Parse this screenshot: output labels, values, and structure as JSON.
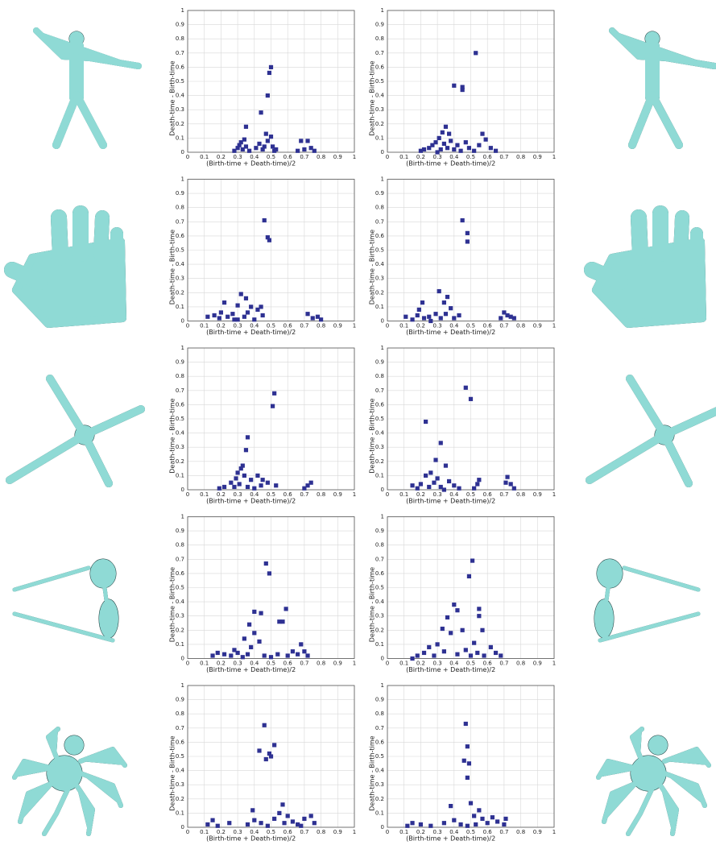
{
  "chart_data": [
    {
      "type": "scatter",
      "xlabel": "(Birth-time + Death-time)/2",
      "ylabel": "Death-time - Birth-time",
      "color": "#2e3192",
      "grid": true,
      "xlim": [
        0,
        1
      ],
      "ylim": [
        0,
        1
      ],
      "xticks": [
        0,
        0.1,
        0.2,
        0.3,
        0.4,
        0.5,
        0.6,
        0.7,
        0.8,
        0.9,
        1
      ],
      "yticks": [
        0,
        0.1,
        0.2,
        0.3,
        0.4,
        0.5,
        0.6,
        0.7,
        0.8,
        0.9,
        1
      ],
      "x": [
        0.5,
        0.49,
        0.48,
        0.44,
        0.35,
        0.34,
        0.31,
        0.3,
        0.32,
        0.33,
        0.35,
        0.37,
        0.41,
        0.43,
        0.45,
        0.47,
        0.48,
        0.5,
        0.51,
        0.52,
        0.46,
        0.28,
        0.66,
        0.68,
        0.72,
        0.74,
        0.76,
        0.7,
        0.53
      ],
      "values": [
        0.6,
        0.56,
        0.4,
        0.28,
        0.18,
        0.09,
        0.05,
        0.03,
        0.07,
        0.02,
        0.04,
        0.01,
        0.03,
        0.06,
        0.02,
        0.13,
        0.08,
        0.11,
        0.04,
        0.01,
        0.04,
        0.01,
        0.01,
        0.08,
        0.08,
        0.03,
        0.01,
        0.02,
        0.02
      ]
    },
    {
      "type": "scatter",
      "xlabel": "(Birth-time + Death-time)/2",
      "ylabel": "Death-time - Birth-time",
      "color": "#2e3192",
      "grid": true,
      "xlim": [
        0,
        1
      ],
      "ylim": [
        0,
        1
      ],
      "xticks": [
        0,
        0.1,
        0.2,
        0.3,
        0.4,
        0.5,
        0.6,
        0.7,
        0.8,
        0.9,
        1
      ],
      "yticks": [
        0,
        0.1,
        0.2,
        0.3,
        0.4,
        0.5,
        0.6,
        0.7,
        0.8,
        0.9,
        1
      ],
      "x": [
        0.53,
        0.4,
        0.45,
        0.45,
        0.35,
        0.33,
        0.37,
        0.31,
        0.29,
        0.27,
        0.25,
        0.22,
        0.2,
        0.34,
        0.36,
        0.38,
        0.4,
        0.42,
        0.44,
        0.47,
        0.49,
        0.52,
        0.55,
        0.57,
        0.59,
        0.62,
        0.65,
        0.32,
        0.3
      ],
      "values": [
        0.7,
        0.47,
        0.46,
        0.44,
        0.18,
        0.14,
        0.13,
        0.1,
        0.07,
        0.05,
        0.03,
        0.02,
        0.01,
        0.06,
        0.03,
        0.08,
        0.02,
        0.05,
        0.01,
        0.07,
        0.03,
        0.01,
        0.05,
        0.13,
        0.09,
        0.03,
        0.01,
        0.02,
        0.0
      ]
    },
    {
      "type": "scatter",
      "xlabel": "(Birth-time + Death-time)/2",
      "ylabel": "Death-time - Birth-time",
      "color": "#2e3192",
      "grid": true,
      "xlim": [
        0,
        1
      ],
      "ylim": [
        0,
        1
      ],
      "xticks": [
        0,
        0.1,
        0.2,
        0.3,
        0.4,
        0.5,
        0.6,
        0.7,
        0.8,
        0.9,
        1
      ],
      "yticks": [
        0,
        0.1,
        0.2,
        0.3,
        0.4,
        0.5,
        0.6,
        0.7,
        0.8,
        0.9,
        1
      ],
      "x": [
        0.46,
        0.48,
        0.49,
        0.32,
        0.35,
        0.3,
        0.22,
        0.38,
        0.42,
        0.44,
        0.12,
        0.16,
        0.19,
        0.24,
        0.27,
        0.3,
        0.34,
        0.36,
        0.4,
        0.45,
        0.72,
        0.75,
        0.78,
        0.8,
        0.2,
        0.28
      ],
      "values": [
        0.71,
        0.59,
        0.57,
        0.19,
        0.16,
        0.11,
        0.13,
        0.1,
        0.08,
        0.1,
        0.03,
        0.04,
        0.02,
        0.03,
        0.05,
        0.01,
        0.03,
        0.06,
        0.01,
        0.04,
        0.05,
        0.02,
        0.03,
        0.01,
        0.06,
        0.01
      ]
    },
    {
      "type": "scatter",
      "xlabel": "(Birth-time + Death-time)/2",
      "ylabel": "Death-time - Birth-time",
      "color": "#2e3192",
      "grid": true,
      "xlim": [
        0,
        1
      ],
      "ylim": [
        0,
        1
      ],
      "xticks": [
        0,
        0.1,
        0.2,
        0.3,
        0.4,
        0.5,
        0.6,
        0.7,
        0.8,
        0.9,
        1
      ],
      "yticks": [
        0,
        0.1,
        0.2,
        0.3,
        0.4,
        0.5,
        0.6,
        0.7,
        0.8,
        0.9,
        1
      ],
      "x": [
        0.45,
        0.48,
        0.48,
        0.31,
        0.36,
        0.21,
        0.34,
        0.19,
        0.38,
        0.11,
        0.15,
        0.18,
        0.22,
        0.25,
        0.29,
        0.32,
        0.35,
        0.4,
        0.43,
        0.7,
        0.72,
        0.74,
        0.76,
        0.68,
        0.26
      ],
      "values": [
        0.71,
        0.62,
        0.56,
        0.21,
        0.17,
        0.13,
        0.13,
        0.08,
        0.09,
        0.03,
        0.01,
        0.04,
        0.02,
        0.03,
        0.05,
        0.02,
        0.05,
        0.02,
        0.04,
        0.06,
        0.04,
        0.03,
        0.02,
        0.02,
        0.0
      ]
    },
    {
      "type": "scatter",
      "xlabel": "(Birth-time + Death-time)/2",
      "ylabel": "Death-time - Birth-time",
      "color": "#2e3192",
      "grid": true,
      "xlim": [
        0,
        1
      ],
      "ylim": [
        0,
        1
      ],
      "xticks": [
        0,
        0.1,
        0.2,
        0.3,
        0.4,
        0.5,
        0.6,
        0.7,
        0.8,
        0.9,
        1
      ],
      "yticks": [
        0,
        0.1,
        0.2,
        0.3,
        0.4,
        0.5,
        0.6,
        0.7,
        0.8,
        0.9,
        1
      ],
      "x": [
        0.52,
        0.51,
        0.36,
        0.35,
        0.33,
        0.32,
        0.3,
        0.34,
        0.38,
        0.42,
        0.45,
        0.48,
        0.53,
        0.26,
        0.28,
        0.22,
        0.19,
        0.31,
        0.36,
        0.4,
        0.44,
        0.72,
        0.74,
        0.7,
        0.29
      ],
      "values": [
        0.68,
        0.59,
        0.37,
        0.28,
        0.17,
        0.15,
        0.12,
        0.1,
        0.07,
        0.1,
        0.07,
        0.05,
        0.03,
        0.05,
        0.02,
        0.02,
        0.01,
        0.04,
        0.02,
        0.01,
        0.03,
        0.03,
        0.05,
        0.01,
        0.08
      ]
    },
    {
      "type": "scatter",
      "xlabel": "(Birth-time + Death-time)/2",
      "ylabel": "Death-time - Birth-time",
      "color": "#2e3192",
      "grid": true,
      "xlim": [
        0,
        1
      ],
      "ylim": [
        0,
        1
      ],
      "xticks": [
        0,
        0.1,
        0.2,
        0.3,
        0.4,
        0.5,
        0.6,
        0.7,
        0.8,
        0.9,
        1
      ],
      "yticks": [
        0,
        0.1,
        0.2,
        0.3,
        0.4,
        0.5,
        0.6,
        0.7,
        0.8,
        0.9,
        1
      ],
      "x": [
        0.47,
        0.5,
        0.23,
        0.32,
        0.29,
        0.35,
        0.26,
        0.23,
        0.3,
        0.37,
        0.15,
        0.18,
        0.2,
        0.25,
        0.28,
        0.32,
        0.4,
        0.43,
        0.54,
        0.55,
        0.52,
        0.71,
        0.72,
        0.74,
        0.76,
        0.34
      ],
      "values": [
        0.72,
        0.64,
        0.48,
        0.33,
        0.21,
        0.17,
        0.12,
        0.1,
        0.08,
        0.06,
        0.03,
        0.01,
        0.04,
        0.02,
        0.05,
        0.02,
        0.03,
        0.01,
        0.04,
        0.07,
        0.01,
        0.05,
        0.09,
        0.04,
        0.01,
        0.0
      ]
    },
    {
      "type": "scatter",
      "xlabel": "(Birth-time + Death-time)/2",
      "ylabel": "Death-time - Birth-time",
      "color": "#2e3192",
      "grid": true,
      "xlim": [
        0,
        1
      ],
      "ylim": [
        0,
        1
      ],
      "xticks": [
        0,
        0.1,
        0.2,
        0.3,
        0.4,
        0.5,
        0.6,
        0.7,
        0.8,
        0.9,
        1
      ],
      "yticks": [
        0,
        0.1,
        0.2,
        0.3,
        0.4,
        0.5,
        0.6,
        0.7,
        0.8,
        0.9,
        1
      ],
      "x": [
        0.47,
        0.49,
        0.4,
        0.44,
        0.37,
        0.4,
        0.34,
        0.43,
        0.55,
        0.57,
        0.59,
        0.38,
        0.15,
        0.18,
        0.22,
        0.26,
        0.3,
        0.33,
        0.36,
        0.46,
        0.5,
        0.54,
        0.6,
        0.63,
        0.66,
        0.68,
        0.7,
        0.72,
        0.28
      ],
      "values": [
        0.67,
        0.6,
        0.33,
        0.32,
        0.24,
        0.18,
        0.14,
        0.12,
        0.26,
        0.26,
        0.35,
        0.08,
        0.02,
        0.04,
        0.03,
        0.02,
        0.04,
        0.01,
        0.03,
        0.02,
        0.01,
        0.03,
        0.02,
        0.05,
        0.03,
        0.1,
        0.05,
        0.02,
        0.06
      ]
    },
    {
      "type": "scatter",
      "xlabel": "(Birth-time + Death-time)/2",
      "ylabel": "Death-time - Birth-time",
      "color": "#2e3192",
      "grid": true,
      "xlim": [
        0,
        1
      ],
      "ylim": [
        0,
        1
      ],
      "xticks": [
        0,
        0.1,
        0.2,
        0.3,
        0.4,
        0.5,
        0.6,
        0.7,
        0.8,
        0.9,
        1
      ],
      "yticks": [
        0,
        0.1,
        0.2,
        0.3,
        0.4,
        0.5,
        0.6,
        0.7,
        0.8,
        0.9,
        1
      ],
      "x": [
        0.51,
        0.49,
        0.4,
        0.42,
        0.36,
        0.55,
        0.55,
        0.33,
        0.38,
        0.45,
        0.57,
        0.52,
        0.25,
        0.3,
        0.18,
        0.22,
        0.28,
        0.34,
        0.42,
        0.47,
        0.5,
        0.54,
        0.58,
        0.62,
        0.65,
        0.68,
        0.15
      ],
      "values": [
        0.69,
        0.58,
        0.38,
        0.34,
        0.29,
        0.35,
        0.3,
        0.21,
        0.18,
        0.2,
        0.2,
        0.11,
        0.08,
        0.1,
        0.02,
        0.04,
        0.02,
        0.05,
        0.03,
        0.06,
        0.02,
        0.04,
        0.02,
        0.08,
        0.04,
        0.02,
        0.0
      ]
    },
    {
      "type": "scatter",
      "xlabel": "(Birth-time + Death-time)/2",
      "ylabel": "Death-time - Birth-time",
      "color": "#2e3192",
      "grid": true,
      "xlim": [
        0,
        1
      ],
      "ylim": [
        0,
        1
      ],
      "xticks": [
        0,
        0.1,
        0.2,
        0.3,
        0.4,
        0.5,
        0.6,
        0.7,
        0.8,
        0.9,
        1
      ],
      "yticks": [
        0,
        0.1,
        0.2,
        0.3,
        0.4,
        0.5,
        0.6,
        0.7,
        0.8,
        0.9,
        1
      ],
      "x": [
        0.46,
        0.52,
        0.43,
        0.49,
        0.47,
        0.5,
        0.39,
        0.12,
        0.15,
        0.18,
        0.25,
        0.36,
        0.4,
        0.44,
        0.48,
        0.52,
        0.55,
        0.57,
        0.6,
        0.63,
        0.66,
        0.7,
        0.74,
        0.76,
        0.68,
        0.58
      ],
      "values": [
        0.72,
        0.58,
        0.54,
        0.52,
        0.48,
        0.5,
        0.12,
        0.02,
        0.05,
        0.01,
        0.03,
        0.02,
        0.05,
        0.03,
        0.01,
        0.06,
        0.1,
        0.16,
        0.08,
        0.04,
        0.02,
        0.06,
        0.08,
        0.03,
        0.01,
        0.03
      ]
    },
    {
      "type": "scatter",
      "xlabel": "(Birth-time + Death-time)/2",
      "ylabel": "Death-time - Birth-time",
      "color": "#2e3192",
      "grid": true,
      "xlim": [
        0,
        1
      ],
      "ylim": [
        0,
        1
      ],
      "xticks": [
        0,
        0.1,
        0.2,
        0.3,
        0.4,
        0.5,
        0.6,
        0.7,
        0.8,
        0.9,
        1
      ],
      "yticks": [
        0,
        0.1,
        0.2,
        0.3,
        0.4,
        0.5,
        0.6,
        0.7,
        0.8,
        0.9,
        1
      ],
      "x": [
        0.47,
        0.48,
        0.46,
        0.49,
        0.48,
        0.38,
        0.5,
        0.12,
        0.15,
        0.2,
        0.26,
        0.34,
        0.4,
        0.44,
        0.48,
        0.52,
        0.55,
        0.57,
        0.6,
        0.63,
        0.66,
        0.7,
        0.71,
        0.53
      ],
      "values": [
        0.73,
        0.57,
        0.47,
        0.45,
        0.35,
        0.15,
        0.17,
        0.01,
        0.03,
        0.02,
        0.01,
        0.03,
        0.05,
        0.02,
        0.01,
        0.08,
        0.12,
        0.06,
        0.03,
        0.07,
        0.04,
        0.02,
        0.06,
        0.02
      ]
    }
  ]
}
